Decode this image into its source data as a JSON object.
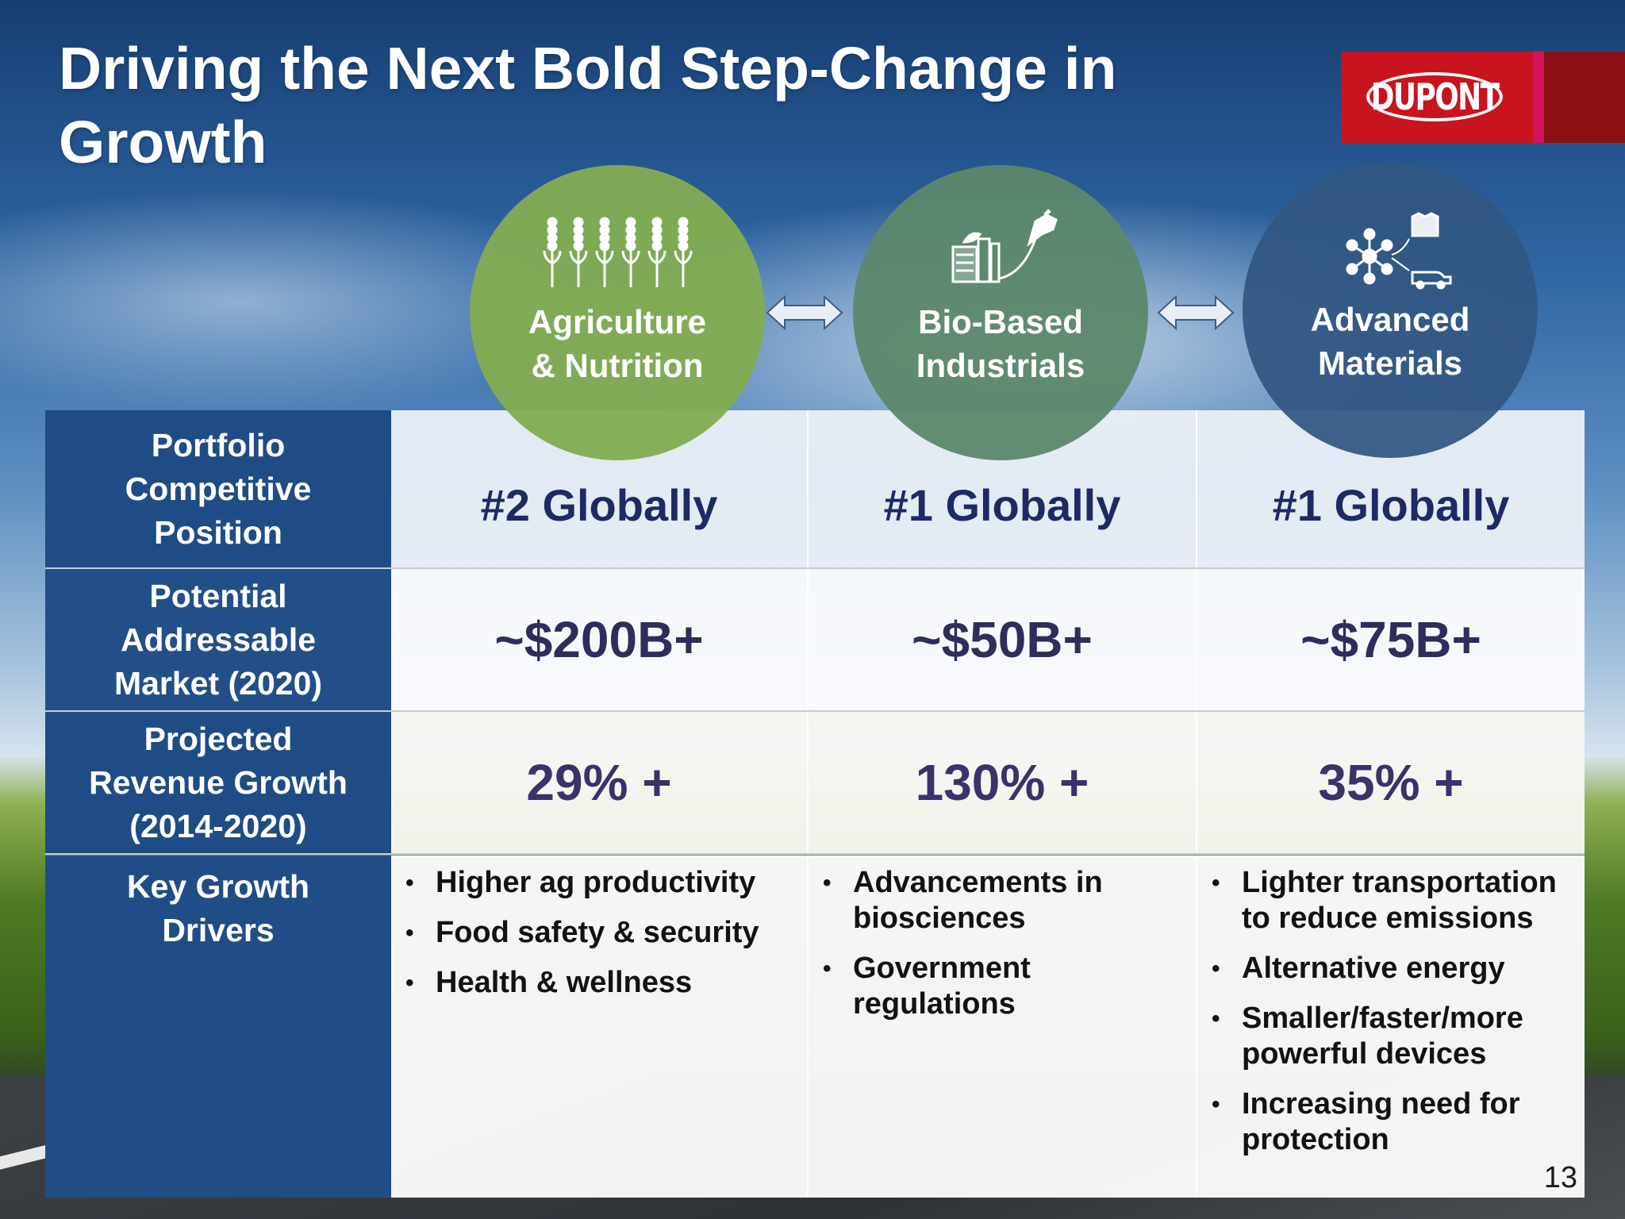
{
  "slide": {
    "title": "Driving the Next Bold Step-Change in Growth",
    "page_number": "13"
  },
  "logo": {
    "text": "DUPONT",
    "colors": {
      "red": "#c8141e",
      "pink": "#d4145a",
      "dark": "#8a1014"
    }
  },
  "segments": [
    {
      "label_line1": "Agriculture",
      "label_line2": "& Nutrition",
      "icon": "wheat-icon",
      "color": "#82ac52"
    },
    {
      "label_line1": "Bio-Based",
      "label_line2": "Industrials",
      "icon": "biofuel-icon",
      "color": "#5c886c"
    },
    {
      "label_line1": "Advanced",
      "label_line2": "Materials",
      "icon": "molecule-icon",
      "color": "#325682"
    }
  ],
  "rows": {
    "position": {
      "label": [
        "Portfolio",
        "Competitive",
        "Position"
      ],
      "values": [
        "#2 Globally",
        "#1 Globally",
        "#1 Globally"
      ]
    },
    "market": {
      "label": [
        "Potential",
        "Addressable",
        "Market (2020)"
      ],
      "values": [
        "~$200B+",
        "~$50B+",
        "~$75B+"
      ]
    },
    "growth": {
      "label": [
        "Projected",
        "Revenue Growth",
        "(2014-2020)"
      ],
      "values": [
        "29% +",
        "130% +",
        "35% +"
      ]
    },
    "drivers": {
      "label": [
        "Key Growth",
        "Drivers"
      ],
      "values": [
        [
          "Higher ag productivity",
          "Food safety & security",
          "Health & wellness"
        ],
        [
          "Advancements in biosciences",
          "Government regulations"
        ],
        [
          "Lighter transportation to reduce emissions",
          "Alternative energy",
          "Smaller/faster/more powerful devices",
          "Increasing need for protection"
        ]
      ]
    }
  }
}
